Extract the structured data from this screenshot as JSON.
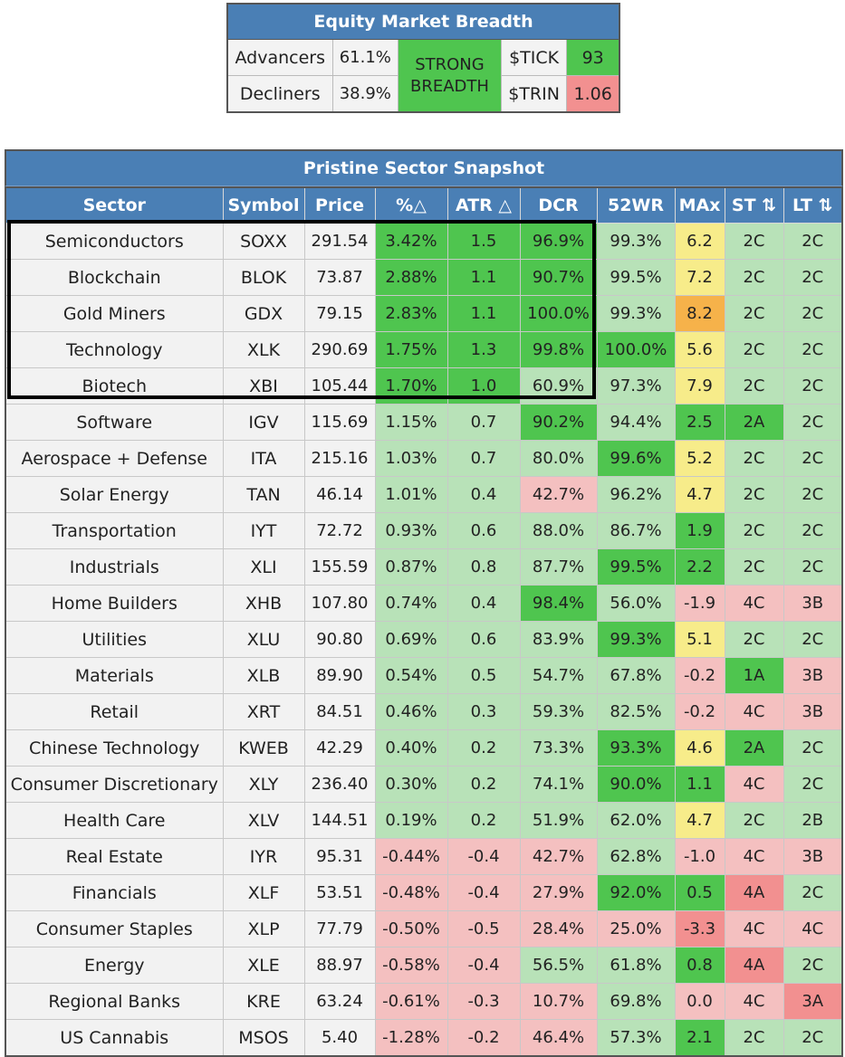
{
  "breadth": {
    "title": "Equity Market Breadth",
    "advancers_label": "Advancers",
    "advancers_value": "61.1%",
    "decliners_label": "Decliners",
    "decliners_value": "38.9%",
    "status_line1": "STRONG",
    "status_line2": "BREADTH",
    "tick_label": "$TICK",
    "tick_value": "93",
    "trin_label": "$TRIN",
    "trin_value": "1.06",
    "colors": {
      "tick": "#4fc54f",
      "trin": "#f29090",
      "status": "#4fc54f"
    }
  },
  "sector": {
    "title": "Pristine Sector Snapshot",
    "columns": [
      "Sector",
      "Symbol",
      "Price",
      "%△",
      "ATR △",
      "DCR",
      "52WR",
      "MAx",
      "ST ⇅",
      "LT ⇅"
    ],
    "color_key": {
      "s": "#4fc54f",
      "l": "#b8e2b8",
      "r": "#f4c0c0",
      "R": "#f29090",
      "y": "#f7ec8a",
      "o": "#f6b24a",
      "n": "#f2f2f2"
    },
    "rows": [
      {
        "cells": [
          "Semiconductors",
          "SOXX",
          "291.54",
          "3.42%",
          "1.5",
          "96.9%",
          "99.3%",
          "6.2",
          "2C",
          "2C"
        ],
        "colors": [
          "n",
          "n",
          "n",
          "s",
          "s",
          "s",
          "l",
          "y",
          "l",
          "l"
        ]
      },
      {
        "cells": [
          "Blockchain",
          "BLOK",
          "73.87",
          "2.88%",
          "1.1",
          "90.7%",
          "99.5%",
          "7.2",
          "2C",
          "2C"
        ],
        "colors": [
          "n",
          "n",
          "n",
          "s",
          "s",
          "s",
          "l",
          "y",
          "l",
          "l"
        ]
      },
      {
        "cells": [
          "Gold Miners",
          "GDX",
          "79.15",
          "2.83%",
          "1.1",
          "100.0%",
          "99.3%",
          "8.2",
          "2C",
          "2C"
        ],
        "colors": [
          "n",
          "n",
          "n",
          "s",
          "s",
          "s",
          "l",
          "o",
          "l",
          "l"
        ]
      },
      {
        "cells": [
          "Technology",
          "XLK",
          "290.69",
          "1.75%",
          "1.3",
          "99.8%",
          "100.0%",
          "5.6",
          "2C",
          "2C"
        ],
        "colors": [
          "n",
          "n",
          "n",
          "s",
          "s",
          "s",
          "s",
          "y",
          "l",
          "l"
        ]
      },
      {
        "cells": [
          "Biotech",
          "XBI",
          "105.44",
          "1.70%",
          "1.0",
          "60.9%",
          "97.3%",
          "7.9",
          "2C",
          "2C"
        ],
        "colors": [
          "n",
          "n",
          "n",
          "s",
          "s",
          "l",
          "l",
          "y",
          "l",
          "l"
        ]
      },
      {
        "cells": [
          "Software",
          "IGV",
          "115.69",
          "1.15%",
          "0.7",
          "90.2%",
          "94.4%",
          "2.5",
          "2A",
          "2C"
        ],
        "colors": [
          "n",
          "n",
          "n",
          "l",
          "l",
          "s",
          "l",
          "s",
          "s",
          "l"
        ]
      },
      {
        "cells": [
          "Aerospace + Defense",
          "ITA",
          "215.16",
          "1.03%",
          "0.7",
          "80.0%",
          "99.6%",
          "5.2",
          "2C",
          "2C"
        ],
        "colors": [
          "n",
          "n",
          "n",
          "l",
          "l",
          "l",
          "s",
          "y",
          "l",
          "l"
        ]
      },
      {
        "cells": [
          "Solar Energy",
          "TAN",
          "46.14",
          "1.01%",
          "0.4",
          "42.7%",
          "96.2%",
          "4.7",
          "2C",
          "2C"
        ],
        "colors": [
          "n",
          "n",
          "n",
          "l",
          "l",
          "r",
          "l",
          "y",
          "l",
          "l"
        ]
      },
      {
        "cells": [
          "Transportation",
          "IYT",
          "72.72",
          "0.93%",
          "0.6",
          "88.0%",
          "86.7%",
          "1.9",
          "2C",
          "2C"
        ],
        "colors": [
          "n",
          "n",
          "n",
          "l",
          "l",
          "l",
          "l",
          "s",
          "l",
          "l"
        ]
      },
      {
        "cells": [
          "Industrials",
          "XLI",
          "155.59",
          "0.87%",
          "0.8",
          "87.7%",
          "99.5%",
          "2.2",
          "2C",
          "2C"
        ],
        "colors": [
          "n",
          "n",
          "n",
          "l",
          "l",
          "l",
          "s",
          "s",
          "l",
          "l"
        ]
      },
      {
        "cells": [
          "Home Builders",
          "XHB",
          "107.80",
          "0.74%",
          "0.4",
          "98.4%",
          "56.0%",
          "-1.9",
          "4C",
          "3B"
        ],
        "colors": [
          "n",
          "n",
          "n",
          "l",
          "l",
          "s",
          "l",
          "r",
          "r",
          "r"
        ]
      },
      {
        "cells": [
          "Utilities",
          "XLU",
          "90.80",
          "0.69%",
          "0.6",
          "83.9%",
          "99.3%",
          "5.1",
          "2C",
          "2C"
        ],
        "colors": [
          "n",
          "n",
          "n",
          "l",
          "l",
          "l",
          "s",
          "y",
          "l",
          "l"
        ]
      },
      {
        "cells": [
          "Materials",
          "XLB",
          "89.90",
          "0.54%",
          "0.5",
          "54.7%",
          "67.8%",
          "-0.2",
          "1A",
          "3B"
        ],
        "colors": [
          "n",
          "n",
          "n",
          "l",
          "l",
          "l",
          "l",
          "r",
          "s",
          "r"
        ]
      },
      {
        "cells": [
          "Retail",
          "XRT",
          "84.51",
          "0.46%",
          "0.3",
          "59.3%",
          "82.5%",
          "-0.2",
          "4C",
          "3B"
        ],
        "colors": [
          "n",
          "n",
          "n",
          "l",
          "l",
          "l",
          "l",
          "r",
          "r",
          "r"
        ]
      },
      {
        "cells": [
          "Chinese Technology",
          "KWEB",
          "42.29",
          "0.40%",
          "0.2",
          "73.3%",
          "93.3%",
          "4.6",
          "2A",
          "2C"
        ],
        "colors": [
          "n",
          "n",
          "n",
          "l",
          "l",
          "l",
          "s",
          "y",
          "s",
          "l"
        ]
      },
      {
        "cells": [
          "Consumer Discretionary",
          "XLY",
          "236.40",
          "0.30%",
          "0.2",
          "74.1%",
          "90.0%",
          "1.1",
          "4C",
          "2C"
        ],
        "colors": [
          "n",
          "n",
          "n",
          "l",
          "l",
          "l",
          "s",
          "s",
          "r",
          "l"
        ]
      },
      {
        "cells": [
          "Health Care",
          "XLV",
          "144.51",
          "0.19%",
          "0.2",
          "51.9%",
          "62.0%",
          "4.7",
          "2C",
          "2B"
        ],
        "colors": [
          "n",
          "n",
          "n",
          "l",
          "l",
          "l",
          "l",
          "y",
          "l",
          "l"
        ]
      },
      {
        "cells": [
          "Real Estate",
          "IYR",
          "95.31",
          "-0.44%",
          "-0.4",
          "42.7%",
          "62.8%",
          "-1.0",
          "4C",
          "3B"
        ],
        "colors": [
          "n",
          "n",
          "n",
          "r",
          "r",
          "r",
          "l",
          "r",
          "r",
          "r"
        ]
      },
      {
        "cells": [
          "Financials",
          "XLF",
          "53.51",
          "-0.48%",
          "-0.4",
          "27.9%",
          "92.0%",
          "0.5",
          "4A",
          "2C"
        ],
        "colors": [
          "n",
          "n",
          "n",
          "r",
          "r",
          "r",
          "s",
          "s",
          "R",
          "l"
        ]
      },
      {
        "cells": [
          "Consumer Staples",
          "XLP",
          "77.79",
          "-0.50%",
          "-0.5",
          "28.4%",
          "25.0%",
          "-3.3",
          "4C",
          "4C"
        ],
        "colors": [
          "n",
          "n",
          "n",
          "r",
          "r",
          "r",
          "r",
          "R",
          "r",
          "r"
        ]
      },
      {
        "cells": [
          "Energy",
          "XLE",
          "88.97",
          "-0.58%",
          "-0.4",
          "56.5%",
          "61.8%",
          "0.8",
          "4A",
          "2C"
        ],
        "colors": [
          "n",
          "n",
          "n",
          "r",
          "r",
          "l",
          "l",
          "s",
          "R",
          "l"
        ]
      },
      {
        "cells": [
          "Regional Banks",
          "KRE",
          "63.24",
          "-0.61%",
          "-0.3",
          "10.7%",
          "69.8%",
          "0.0",
          "4C",
          "3A"
        ],
        "colors": [
          "n",
          "n",
          "n",
          "r",
          "r",
          "r",
          "l",
          "r",
          "r",
          "R"
        ]
      },
      {
        "cells": [
          "US Cannabis",
          "MSOS",
          "5.40",
          "-1.28%",
          "-0.2",
          "46.4%",
          "57.3%",
          "2.1",
          "2C",
          "2C"
        ],
        "colors": [
          "n",
          "n",
          "n",
          "r",
          "r",
          "r",
          "l",
          "s",
          "l",
          "l"
        ]
      }
    ]
  }
}
